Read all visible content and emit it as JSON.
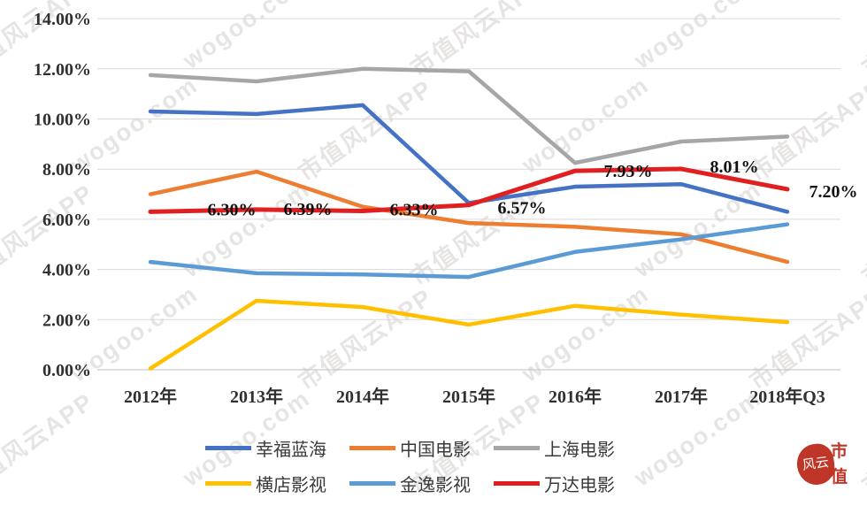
{
  "chart_data": {
    "type": "line",
    "categories": [
      "2012年",
      "2013年",
      "2014年",
      "2015年",
      "2016年",
      "2017年",
      "2018年Q3"
    ],
    "series": [
      {
        "name": "幸福蓝海",
        "color": "#4472C4",
        "values": [
          10.3,
          10.2,
          10.55,
          6.65,
          7.3,
          7.4,
          6.3
        ]
      },
      {
        "name": "中国电影",
        "color": "#ED7D31",
        "values": [
          7.0,
          7.9,
          6.5,
          5.85,
          5.7,
          5.4,
          4.3
        ]
      },
      {
        "name": "上海电影",
        "color": "#A6A6A6",
        "values": [
          11.75,
          11.5,
          12.0,
          11.9,
          8.25,
          9.1,
          9.3
        ]
      },
      {
        "name": "横店影视",
        "color": "#FFC000",
        "values": [
          0.05,
          2.75,
          2.5,
          1.8,
          2.55,
          2.2,
          1.9
        ]
      },
      {
        "name": "金逸影视",
        "color": "#5B9BD5",
        "values": [
          4.3,
          3.85,
          3.8,
          3.7,
          4.7,
          5.2,
          5.8
        ]
      },
      {
        "name": "万达电影",
        "color": "#E02020",
        "values": [
          6.3,
          6.39,
          6.33,
          6.57,
          7.93,
          8.01,
          7.2
        ],
        "data_labels": [
          "6.30%",
          "6.39%",
          "6.33%",
          "6.57%",
          "7.93%",
          "8.01%",
          "7.20%"
        ],
        "label_dx": [
          92,
          58,
          58,
          60,
          60,
          60,
          52
        ],
        "label_dy": [
          -3,
          -1,
          -2,
          3,
          0,
          -3,
          2
        ]
      }
    ],
    "ylim": [
      0,
      14
    ],
    "ytick_labels": [
      "0.00%",
      "2.00%",
      "4.00%",
      "6.00%",
      "8.00%",
      "10.00%",
      "12.00%",
      "14.00%"
    ],
    "grid": true,
    "legend_position": "bottom",
    "legend_rows": [
      [
        0,
        1,
        2
      ],
      [
        3,
        4,
        5
      ]
    ]
  },
  "watermark": {
    "texts": [
      "市值风云APP",
      "wogoo.com"
    ]
  },
  "logo": {
    "seal_text": "风云",
    "side_top": "市",
    "side_bottom": "值"
  }
}
